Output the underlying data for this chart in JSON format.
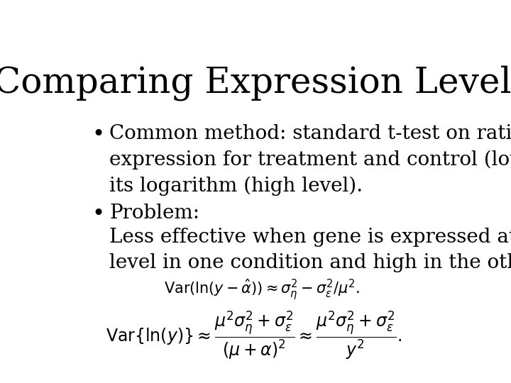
{
  "title": "Comparing Expression Levels",
  "title_fontsize": 36,
  "background_color": "#ffffff",
  "text_color": "#000000",
  "bullet1_line1": "Common method: standard t-test on ratio of",
  "bullet1_line2": "expression for treatment and control (low level), or",
  "bullet1_line3": "its logarithm (high level).",
  "bullet2_header": "Problem:",
  "bullet2_body_line1": "Less effective when gene is expressed at a low",
  "bullet2_body_line2": "level in one condition and high in the other:",
  "formula1": "$\\mathrm{Var}(\\ln(y - \\hat{\\alpha})) \\approx \\sigma_\\eta^2 - \\sigma_\\varepsilon^2/\\mu^2.$",
  "formula2": "$\\mathrm{Var}\\{\\ln(y)\\} \\approx \\dfrac{\\mu^2\\sigma_\\eta^2 + \\sigma_\\varepsilon^2}{(\\mu + \\alpha)^2} \\approx \\dfrac{\\mu^2\\sigma_\\eta^2 + \\sigma_\\varepsilon^2}{y^2}.$",
  "bullet_fontsize": 20,
  "formula1_fontsize": 15,
  "formula2_fontsize": 17,
  "body_fontsize": 20
}
